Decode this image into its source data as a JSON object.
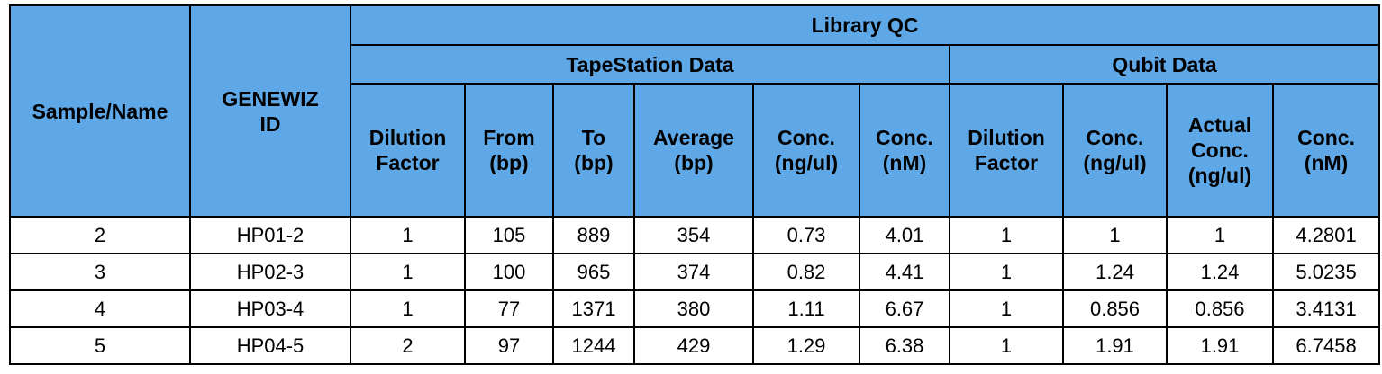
{
  "header": {
    "sample_name": "Sample/Name",
    "genewiz_id": "GENEWIZ\nID",
    "library_qc": "Library QC",
    "tapestation_data": "TapeStation Data",
    "qubit_data": "Qubit Data",
    "tapestation_columns": [
      "Dilution\nFactor",
      "From\n(bp)",
      "To\n(bp)",
      "Average\n(bp)",
      "Conc.\n(ng/ul)",
      "Conc.\n(nM)"
    ],
    "qubit_columns": [
      "Dilution\nFactor",
      "Conc.\n(ng/ul)",
      "Actual\nConc.\n(ng/ul)",
      "Conc.\n(nM)"
    ]
  },
  "rows": [
    [
      "2",
      "HP01-2",
      "1",
      "105",
      "889",
      "354",
      "0.73",
      "4.01",
      "1",
      "1",
      "1",
      "4.2801"
    ],
    [
      "3",
      "HP02-3",
      "1",
      "100",
      "965",
      "374",
      "0.82",
      "4.41",
      "1",
      "1.24",
      "1.24",
      "5.0235"
    ],
    [
      "4",
      "HP03-4",
      "1",
      "77",
      "1371",
      "380",
      "1.11",
      "6.67",
      "1",
      "0.856",
      "0.856",
      "3.4131"
    ],
    [
      "5",
      "HP04-5",
      "2",
      "97",
      "1244",
      "429",
      "1.29",
      "6.38",
      "1",
      "1.91",
      "1.91",
      "6.7458"
    ]
  ],
  "colors": {
    "header_background": "#5ea8e8",
    "border": "#000000",
    "cell_background": "#ffffff"
  }
}
